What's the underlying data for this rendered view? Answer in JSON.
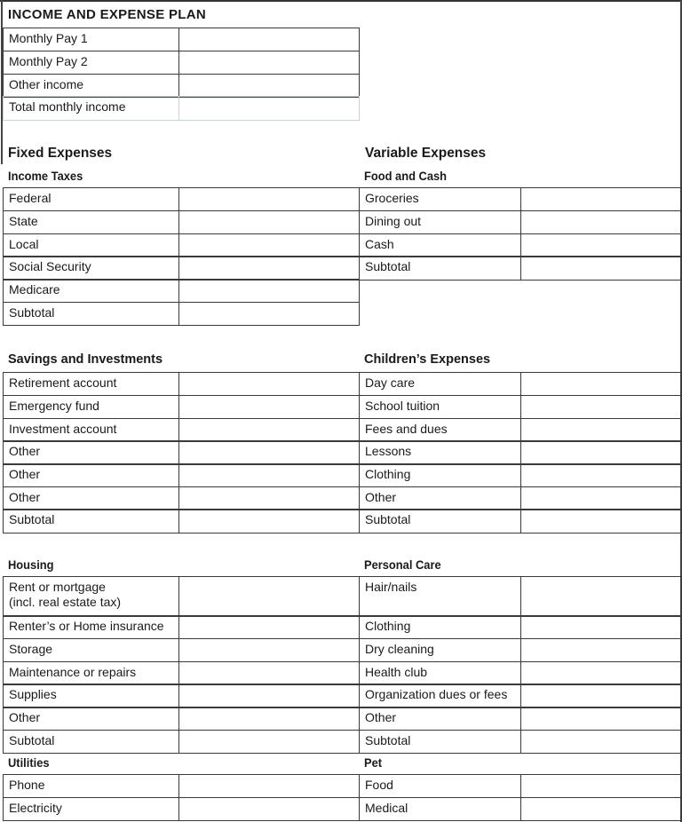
{
  "title": "INCOME AND EXPENSE PLAN",
  "income": {
    "rows": [
      "Monthly Pay 1",
      "Monthly Pay 2",
      "Other income",
      "Total monthly income"
    ]
  },
  "fixed_expenses": {
    "heading": "Fixed Expenses",
    "income_taxes": {
      "heading": "Income Taxes",
      "rows": [
        "Federal",
        "State",
        "Local",
        "Social Security",
        "Medicare",
        "Subtotal"
      ]
    },
    "savings": {
      "heading": "Savings and Investments",
      "rows": [
        "Retirement account",
        "Emergency fund",
        "Investment account",
        "Other",
        "Other",
        "Other",
        "Subtotal"
      ]
    },
    "housing": {
      "heading": "Housing",
      "rows": [
        "Rent or mortgage\n(incl. real estate tax)",
        "Renter’s or Home insurance",
        "Storage",
        "Maintenance or repairs",
        "Supplies",
        "Other",
        "Subtotal"
      ]
    },
    "utilities": {
      "heading": "Utilities",
      "rows": [
        "Phone",
        "Electricity"
      ]
    }
  },
  "variable_expenses": {
    "heading": "Variable Expenses",
    "food": {
      "heading": "Food and Cash",
      "rows": [
        "Groceries",
        "Dining out",
        "Cash",
        "Subtotal"
      ]
    },
    "children": {
      "heading": "Children’s Expenses",
      "rows": [
        "Day care",
        "School tuition",
        "Fees and dues",
        "Lessons",
        "Clothing",
        "Other",
        "Subtotal"
      ]
    },
    "personal_care": {
      "heading": "Personal Care",
      "rows": [
        "Hair/nails",
        "Clothing",
        "Dry cleaning",
        "Health club",
        "Organization dues or fees",
        "Other",
        "Subtotal"
      ]
    },
    "pet": {
      "heading": "Pet",
      "rows": [
        "Food",
        "Medical"
      ]
    }
  }
}
